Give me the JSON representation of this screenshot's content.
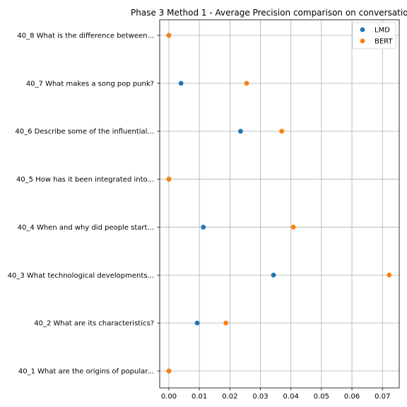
{
  "chart_data": {
    "type": "scatter",
    "title": "Phase 3 Method 1 - Average Precision comparison on conversatio",
    "xlabel": "",
    "ylabel": "",
    "xlim": [
      -0.003,
      0.0755
    ],
    "xticks": [
      "0.00",
      "0.01",
      "0.02",
      "0.03",
      "0.04",
      "0.05",
      "0.06",
      "0.07"
    ],
    "grid": true,
    "legend_position": "top-right",
    "categories": [
      "40_1 What are the origins of popular...",
      "40_2 What are its characteristics?",
      "40_3 What technological developments...",
      "40_4 When and why did people start...",
      "40_5 How has it been integrated into...",
      "40_6 Describe some of the influential...",
      "40_7 What makes a song pop punk?",
      "40_8 What is the difference between..."
    ],
    "series": [
      {
        "name": "LMD",
        "color": "#1f77b4",
        "values": [
          0.0,
          0.0093,
          0.0343,
          0.0113,
          0.0,
          0.0235,
          0.004,
          0.0
        ]
      },
      {
        "name": "BERT",
        "color": "#ff7f0e",
        "values": [
          0.0,
          0.0187,
          0.0722,
          0.0408,
          0.0,
          0.037,
          0.0255,
          0.0
        ]
      }
    ]
  }
}
